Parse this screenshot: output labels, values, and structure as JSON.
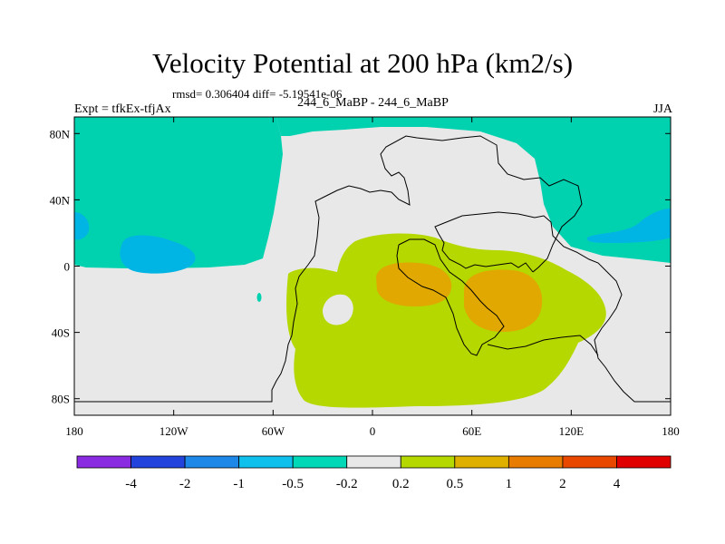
{
  "header": {
    "title": "Velocity Potential at 200 hPa (km2/s)",
    "stats": "rmsd= 0.306404  diff= -5.19541e-06",
    "left_label": "Expt = tfkEx-tfjAx",
    "center_label": "244_6_MaBP - 244_6_MaBP",
    "right_label": "JJA"
  },
  "map": {
    "lon_ticks": [
      {
        "lon": -180,
        "label": "180"
      },
      {
        "lon": -120,
        "label": "120W"
      },
      {
        "lon": -60,
        "label": "60W"
      },
      {
        "lon": 0,
        "label": "0"
      },
      {
        "lon": 60,
        "label": "60E"
      },
      {
        "lon": 120,
        "label": "120E"
      },
      {
        "lon": 180,
        "label": "180"
      }
    ],
    "lat_ticks": [
      {
        "lat": 80,
        "label": "80N"
      },
      {
        "lat": 40,
        "label": "40N"
      },
      {
        "lat": 0,
        "label": "0"
      },
      {
        "lat": -40,
        "label": "40S"
      },
      {
        "lat": -80,
        "label": "80S"
      }
    ],
    "fill_colors": {
      "neutral": "#e8e8e8",
      "minus_0_5": "#00d2b0",
      "minus_1": "#00b4e4",
      "plus_0_2": "#b4d800",
      "plus_0_5": "#e0a800"
    }
  },
  "colorbar": {
    "colors": [
      "#8a2be2",
      "#2244dd",
      "#1e88e8",
      "#10c0ec",
      "#00d8b8",
      "#e8e8e8",
      "#b4d800",
      "#e0b000",
      "#e87c00",
      "#e84800",
      "#e00000"
    ],
    "labels": [
      "-4",
      "-2",
      "-1",
      "-0.5",
      "-0.2",
      "0.2",
      "0.5",
      "1",
      "2",
      "4"
    ]
  }
}
